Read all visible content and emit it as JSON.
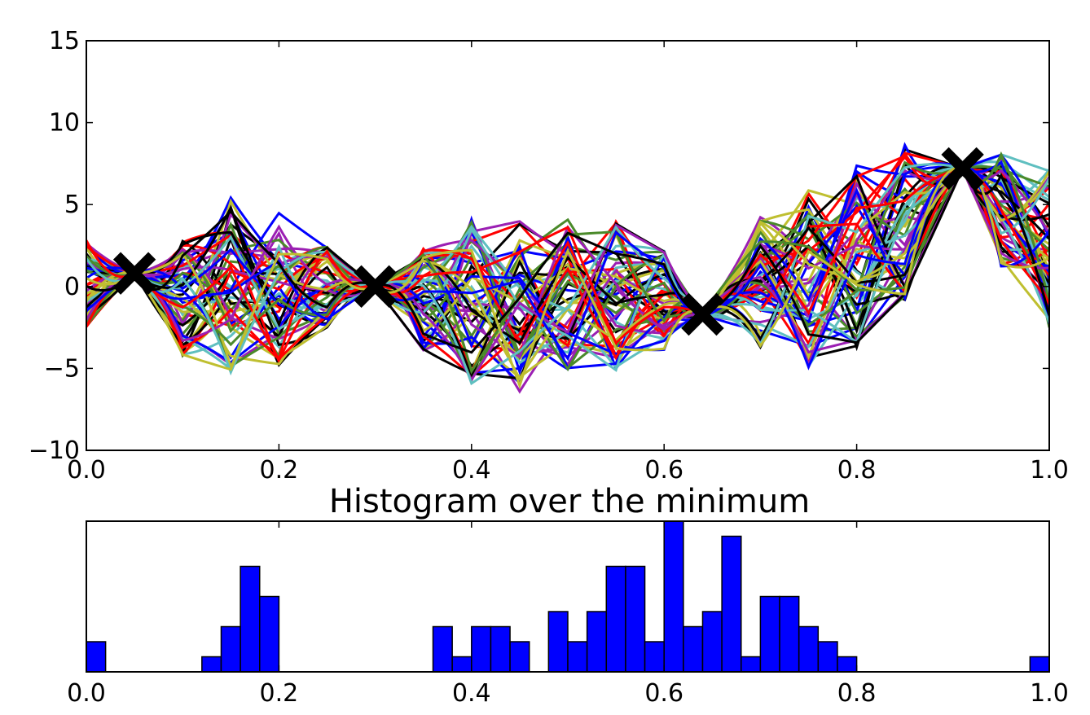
{
  "colors": {
    "background": "#ffffff",
    "axes": "#000000",
    "marker": "#000000",
    "bar_fill": "#0000ff",
    "bar_edge": "#000000",
    "sample_palette": [
      "#0000ff",
      "#ff0000",
      "#000000",
      "#bfbf30",
      "#4a8a2a",
      "#9b1fb3",
      "#5fbfc0"
    ]
  },
  "chart_data": [
    {
      "type": "line",
      "title": "",
      "xlabel": "",
      "ylabel": "",
      "xlim": [
        0.0,
        1.0
      ],
      "ylim": [
        -10,
        15
      ],
      "xticks": [
        0.0,
        0.2,
        0.4,
        0.6,
        0.8,
        1.0
      ],
      "xtick_labels": [
        "0.0",
        "0.2",
        "0.4",
        "0.6",
        "0.8",
        "1.0"
      ],
      "yticks": [
        -10,
        -5,
        0,
        5,
        10,
        15
      ],
      "ytick_labels": [
        "−10",
        "−5",
        "0",
        "5",
        "10",
        "15"
      ],
      "grid": false,
      "legend": "none",
      "series_count": 60,
      "observations": {
        "marker": "x",
        "x": [
          0.05,
          0.3,
          0.64,
          0.91
        ],
        "y": [
          0.8,
          0.0,
          -1.7,
          7.2
        ]
      },
      "envelope": {
        "x": [
          0.0,
          0.05,
          0.1,
          0.15,
          0.2,
          0.25,
          0.3,
          0.35,
          0.4,
          0.45,
          0.5,
          0.55,
          0.6,
          0.64,
          0.7,
          0.75,
          0.8,
          0.85,
          0.91,
          0.95,
          1.0
        ],
        "upper": [
          3.5,
          0.8,
          3.5,
          6.5,
          5.5,
          3.0,
          0.0,
          3.0,
          5.5,
          5.0,
          5.0,
          5.0,
          3.0,
          -1.7,
          5.0,
          7.0,
          8.5,
          10.0,
          7.2,
          9.0,
          8.5
        ],
        "lower": [
          -3.0,
          0.8,
          -5.0,
          -6.5,
          -6.0,
          -3.0,
          0.0,
          -4.5,
          -7.0,
          -7.5,
          -6.0,
          -6.0,
          -4.5,
          -1.7,
          -4.5,
          -6.0,
          -5.0,
          -2.0,
          7.2,
          0.5,
          -4.5
        ]
      }
    },
    {
      "type": "bar",
      "title": "Histogram over the minimum",
      "xlabel": "",
      "ylabel": "",
      "xlim": [
        0.0,
        1.0
      ],
      "ylim": [
        0,
        10
      ],
      "yticks": [],
      "xticks": [
        0.0,
        0.2,
        0.4,
        0.6,
        0.8,
        1.0
      ],
      "xtick_labels": [
        "0.0",
        "0.2",
        "0.4",
        "0.6",
        "0.8",
        "1.0"
      ],
      "grid": false,
      "bin_width": 0.02,
      "bin_starts": [
        0.0,
        0.12,
        0.14,
        0.16,
        0.18,
        0.36,
        0.38,
        0.4,
        0.42,
        0.44,
        0.48,
        0.5,
        0.52,
        0.54,
        0.56,
        0.58,
        0.6,
        0.62,
        0.64,
        0.66,
        0.68,
        0.7,
        0.72,
        0.74,
        0.76,
        0.78,
        0.98
      ],
      "values": [
        2,
        1,
        3,
        7,
        5,
        3,
        1,
        3,
        3,
        2,
        4,
        2,
        4,
        7,
        7,
        2,
        10,
        3,
        4,
        9,
        1,
        5,
        5,
        3,
        2,
        1,
        1
      ]
    }
  ]
}
